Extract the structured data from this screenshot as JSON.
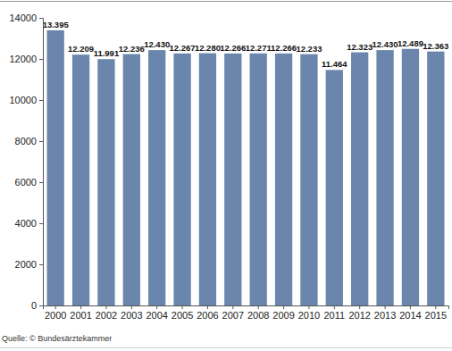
{
  "chart_data": {
    "type": "bar",
    "categories": [
      "2000",
      "2001",
      "2002",
      "2003",
      "2004",
      "2005",
      "2006",
      "2007",
      "2008",
      "2009",
      "2010",
      "2011",
      "2012",
      "2013",
      "2014",
      "2015"
    ],
    "values": [
      13395,
      12209,
      11991,
      12236,
      12430,
      12267,
      12280,
      12266,
      12271,
      12266,
      12233,
      11464,
      12323,
      12430,
      12489,
      12363
    ],
    "value_labels": [
      "13.395",
      "12.209",
      "11.991",
      "12.236",
      "12.430",
      "12.267",
      "12.280",
      "12.266",
      "12.271",
      "12.266",
      "12.233",
      "11.464",
      "12.323",
      "12.430",
      "12.489",
      "12.363"
    ],
    "data_labels": true,
    "color": "#6a86ad",
    "ylim": [
      0,
      14000
    ],
    "yticks": [
      0,
      2000,
      4000,
      6000,
      8000,
      10000,
      12000,
      14000
    ],
    "grid": false,
    "source": "Quelle: © Bundesärztekammer"
  }
}
